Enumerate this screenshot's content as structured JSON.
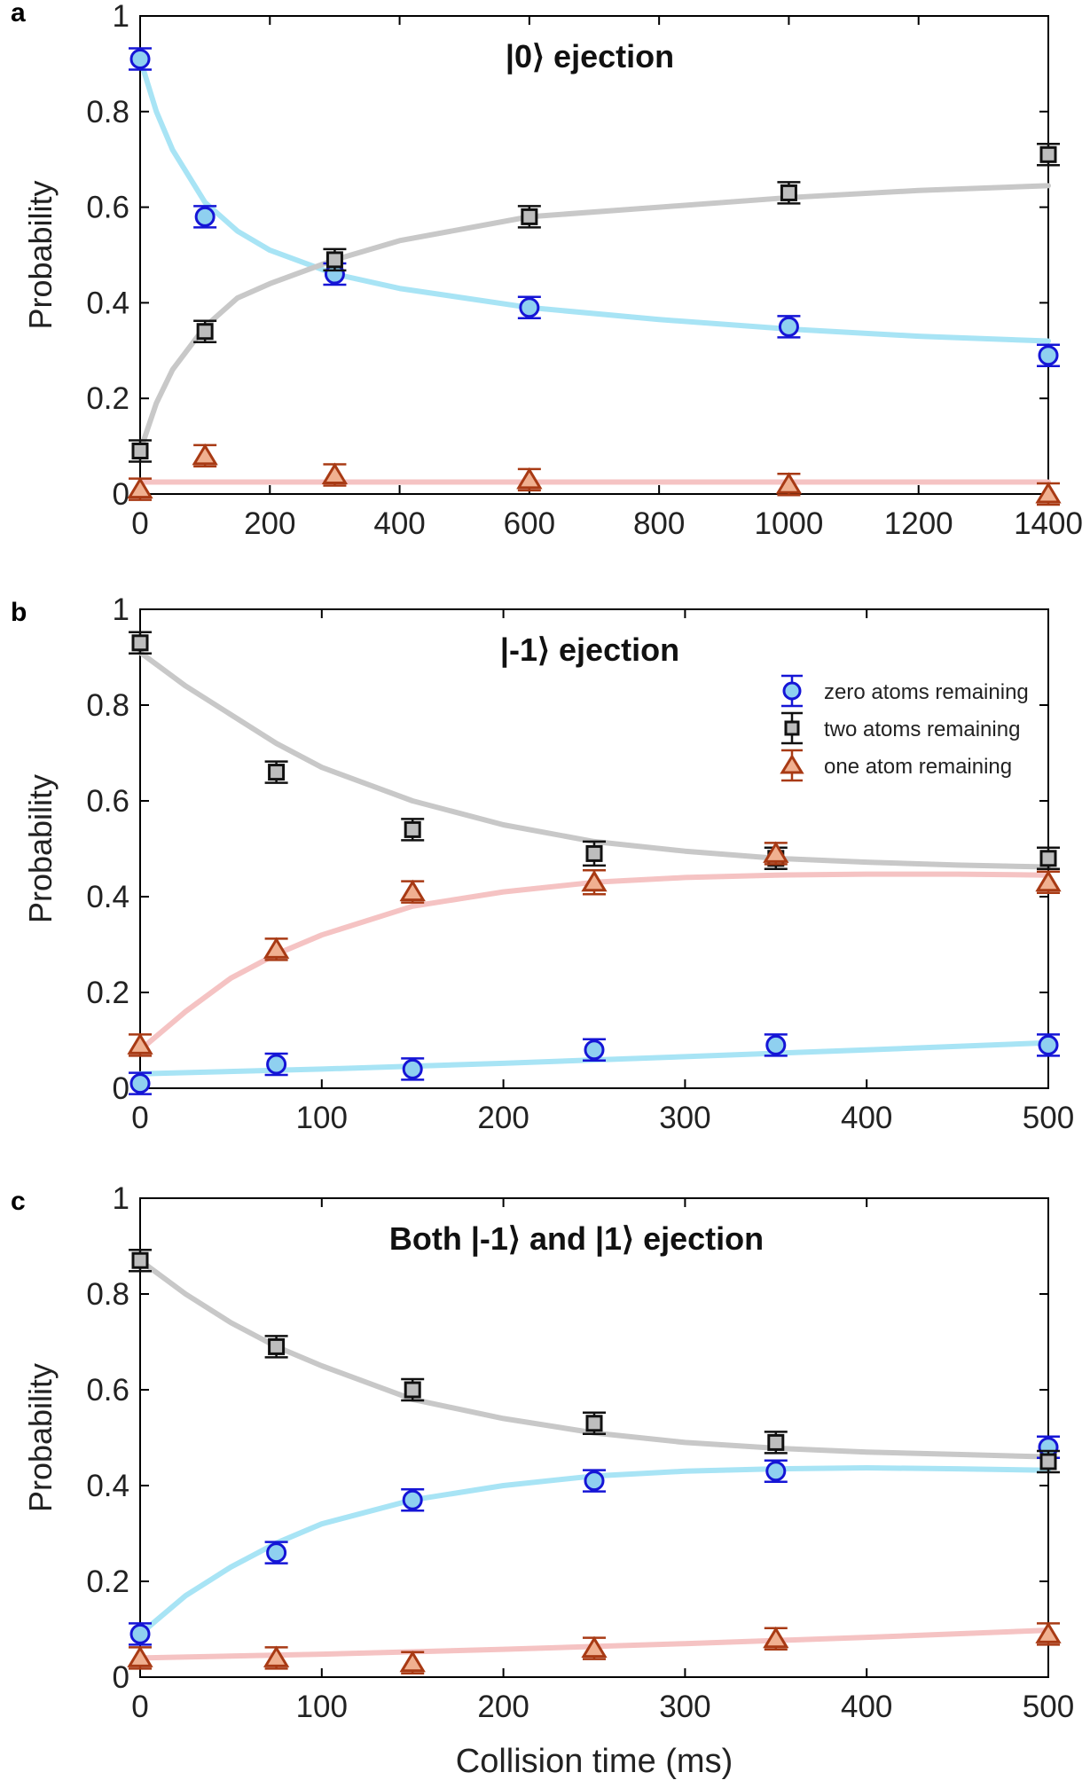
{
  "figure": {
    "xlabel": "Collision time (ms)"
  },
  "chart_data": [
    {
      "type": "scatter",
      "panel_label": "a",
      "title": "|0⟩ ejection",
      "ylabel": "Probability",
      "xlabel": "",
      "xlim": [
        0,
        1400
      ],
      "ylim": [
        0,
        1
      ],
      "xticks": [
        0,
        200,
        400,
        600,
        800,
        1000,
        1200,
        1400
      ],
      "yticks": [
        0,
        0.2,
        0.4,
        0.6,
        0.8,
        1
      ],
      "ytick_labels": [
        "0",
        "0.2",
        "0.4",
        "0.6",
        "0.8",
        "1"
      ],
      "legend": null,
      "series": [
        {
          "name": "zero atoms remaining",
          "marker": "circle",
          "color": "#1515d6",
          "fit_color": "#a8e4f5",
          "x": [
            0,
            100,
            300,
            600,
            1000,
            1400
          ],
          "y": [
            0.91,
            0.58,
            0.46,
            0.39,
            0.35,
            0.29
          ],
          "err": [
            0.02,
            0.02,
            0.02,
            0.02,
            0.02,
            0.02
          ],
          "fit": {
            "x": [
              0,
              25,
              50,
              100,
              150,
              200,
              300,
              400,
              600,
              800,
              1000,
              1200,
              1400
            ],
            "y": [
              0.91,
              0.8,
              0.72,
              0.61,
              0.55,
              0.51,
              0.46,
              0.43,
              0.39,
              0.365,
              0.345,
              0.33,
              0.32
            ]
          }
        },
        {
          "name": "two atoms remaining",
          "marker": "square",
          "color": "#111111",
          "fit_color": "#c8c8c8",
          "x": [
            0,
            100,
            300,
            600,
            1000,
            1400
          ],
          "y": [
            0.09,
            0.34,
            0.49,
            0.58,
            0.63,
            0.71
          ],
          "err": [
            0.02,
            0.02,
            0.02,
            0.02,
            0.02,
            0.02
          ],
          "fit": {
            "x": [
              0,
              25,
              50,
              100,
              150,
              200,
              300,
              400,
              600,
              800,
              1000,
              1200,
              1400
            ],
            "y": [
              0.09,
              0.19,
              0.26,
              0.35,
              0.41,
              0.44,
              0.49,
              0.53,
              0.58,
              0.6,
              0.62,
              0.635,
              0.645
            ]
          }
        },
        {
          "name": "one atom remaining",
          "marker": "triangle",
          "color": "#a83a14",
          "fit_color": "#f5c3c3",
          "x": [
            0,
            100,
            300,
            600,
            1000,
            1400
          ],
          "y": [
            0.01,
            0.08,
            0.04,
            0.03,
            0.02,
            0.0
          ],
          "err": [
            0.01,
            0.01,
            0.01,
            0.01,
            0.01,
            0.01
          ],
          "fit": {
            "x": [
              0,
              1400
            ],
            "y": [
              0.025,
              0.025
            ]
          }
        }
      ]
    },
    {
      "type": "scatter",
      "panel_label": "b",
      "title": "|-1⟩ ejection",
      "ylabel": "Probability",
      "xlabel": "",
      "xlim": [
        0,
        500
      ],
      "ylim": [
        0,
        1
      ],
      "xticks": [
        0,
        100,
        200,
        300,
        400,
        500
      ],
      "yticks": [
        0,
        0.2,
        0.4,
        0.6,
        0.8,
        1
      ],
      "ytick_labels": [
        "0",
        "0.2",
        "0.4",
        "0.6",
        "0.8",
        "1"
      ],
      "legend": {
        "placement": "top-right",
        "items": [
          {
            "label": "zero atoms remaining",
            "marker": "circle",
            "color": "#1515d6"
          },
          {
            "label": "two atoms remaining",
            "marker": "square",
            "color": "#111111"
          },
          {
            "label": "one atom remaining",
            "marker": "triangle",
            "color": "#a83a14"
          }
        ]
      },
      "series": [
        {
          "name": "zero atoms remaining",
          "marker": "circle",
          "color": "#1515d6",
          "fit_color": "#a8e4f5",
          "x": [
            0,
            75,
            150,
            250,
            350,
            500
          ],
          "y": [
            0.01,
            0.05,
            0.04,
            0.08,
            0.09,
            0.09
          ],
          "err": [
            0.01,
            0.015,
            0.01,
            0.015,
            0.015,
            0.015
          ],
          "fit": {
            "x": [
              0,
              100,
              200,
              300,
              400,
              500
            ],
            "y": [
              0.03,
              0.04,
              0.052,
              0.066,
              0.08,
              0.095
            ]
          }
        },
        {
          "name": "two atoms remaining",
          "marker": "square",
          "color": "#111111",
          "fit_color": "#c8c8c8",
          "x": [
            0,
            75,
            150,
            250,
            350,
            500
          ],
          "y": [
            0.93,
            0.66,
            0.54,
            0.49,
            0.48,
            0.48
          ],
          "err": [
            0.015,
            0.02,
            0.02,
            0.025,
            0.02,
            0.02
          ],
          "fit": {
            "x": [
              0,
              25,
              50,
              75,
              100,
              150,
              200,
              250,
              300,
              350,
              400,
              450,
              500
            ],
            "y": [
              0.91,
              0.84,
              0.78,
              0.72,
              0.67,
              0.6,
              0.55,
              0.515,
              0.495,
              0.48,
              0.472,
              0.466,
              0.462
            ]
          }
        },
        {
          "name": "one atom remaining",
          "marker": "triangle",
          "color": "#a83a14",
          "fit_color": "#f5c3c3",
          "x": [
            0,
            75,
            150,
            250,
            350,
            500
          ],
          "y": [
            0.09,
            0.29,
            0.41,
            0.43,
            0.49,
            0.43
          ],
          "err": [
            0.015,
            0.02,
            0.02,
            0.025,
            0.02,
            0.02
          ],
          "fit": {
            "x": [
              0,
              25,
              50,
              75,
              100,
              150,
              200,
              250,
              300,
              350,
              400,
              450,
              500
            ],
            "y": [
              0.08,
              0.16,
              0.23,
              0.28,
              0.32,
              0.38,
              0.41,
              0.43,
              0.44,
              0.445,
              0.447,
              0.447,
              0.445
            ]
          }
        }
      ]
    },
    {
      "type": "scatter",
      "panel_label": "c",
      "title": "Both |-1⟩ and |1⟩ ejection",
      "ylabel": "Probability",
      "xlabel": "Collision time (ms)",
      "xlim": [
        0,
        500
      ],
      "ylim": [
        0,
        1
      ],
      "xticks": [
        0,
        100,
        200,
        300,
        400,
        500
      ],
      "yticks": [
        0,
        0.2,
        0.4,
        0.6,
        0.8,
        1
      ],
      "ytick_labels": [
        "0",
        "0.2",
        "0.4",
        "0.6",
        "0.8",
        "1"
      ],
      "legend": null,
      "series": [
        {
          "name": "zero atoms remaining",
          "marker": "circle",
          "color": "#1515d6",
          "fit_color": "#a8e4f5",
          "x": [
            0,
            75,
            150,
            250,
            350,
            500
          ],
          "y": [
            0.09,
            0.26,
            0.37,
            0.41,
            0.43,
            0.48
          ],
          "err": [
            0.015,
            0.02,
            0.02,
            0.02,
            0.02,
            0.02
          ],
          "fit": {
            "x": [
              0,
              25,
              50,
              75,
              100,
              150,
              200,
              250,
              300,
              350,
              400,
              450,
              500
            ],
            "y": [
              0.09,
              0.17,
              0.23,
              0.28,
              0.32,
              0.37,
              0.4,
              0.42,
              0.43,
              0.435,
              0.437,
              0.435,
              0.432
            ]
          }
        },
        {
          "name": "two atoms remaining",
          "marker": "square",
          "color": "#111111",
          "fit_color": "#c8c8c8",
          "x": [
            0,
            75,
            150,
            250,
            350,
            500
          ],
          "y": [
            0.87,
            0.69,
            0.6,
            0.53,
            0.49,
            0.45
          ],
          "err": [
            0.015,
            0.02,
            0.02,
            0.02,
            0.02,
            0.02
          ],
          "fit": {
            "x": [
              0,
              25,
              50,
              75,
              100,
              150,
              200,
              250,
              300,
              350,
              400,
              450,
              500
            ],
            "y": [
              0.87,
              0.8,
              0.74,
              0.69,
              0.65,
              0.58,
              0.54,
              0.51,
              0.49,
              0.478,
              0.47,
              0.465,
              0.46
            ]
          }
        },
        {
          "name": "one atom remaining",
          "marker": "triangle",
          "color": "#a83a14",
          "fit_color": "#f5c3c3",
          "x": [
            0,
            75,
            150,
            250,
            350,
            500
          ],
          "y": [
            0.04,
            0.04,
            0.03,
            0.06,
            0.08,
            0.09
          ],
          "err": [
            0.01,
            0.01,
            0.01,
            0.01,
            0.01,
            0.01
          ],
          "fit": {
            "x": [
              0,
              100,
              200,
              300,
              400,
              500
            ],
            "y": [
              0.04,
              0.048,
              0.058,
              0.07,
              0.083,
              0.098
            ]
          }
        }
      ]
    }
  ]
}
